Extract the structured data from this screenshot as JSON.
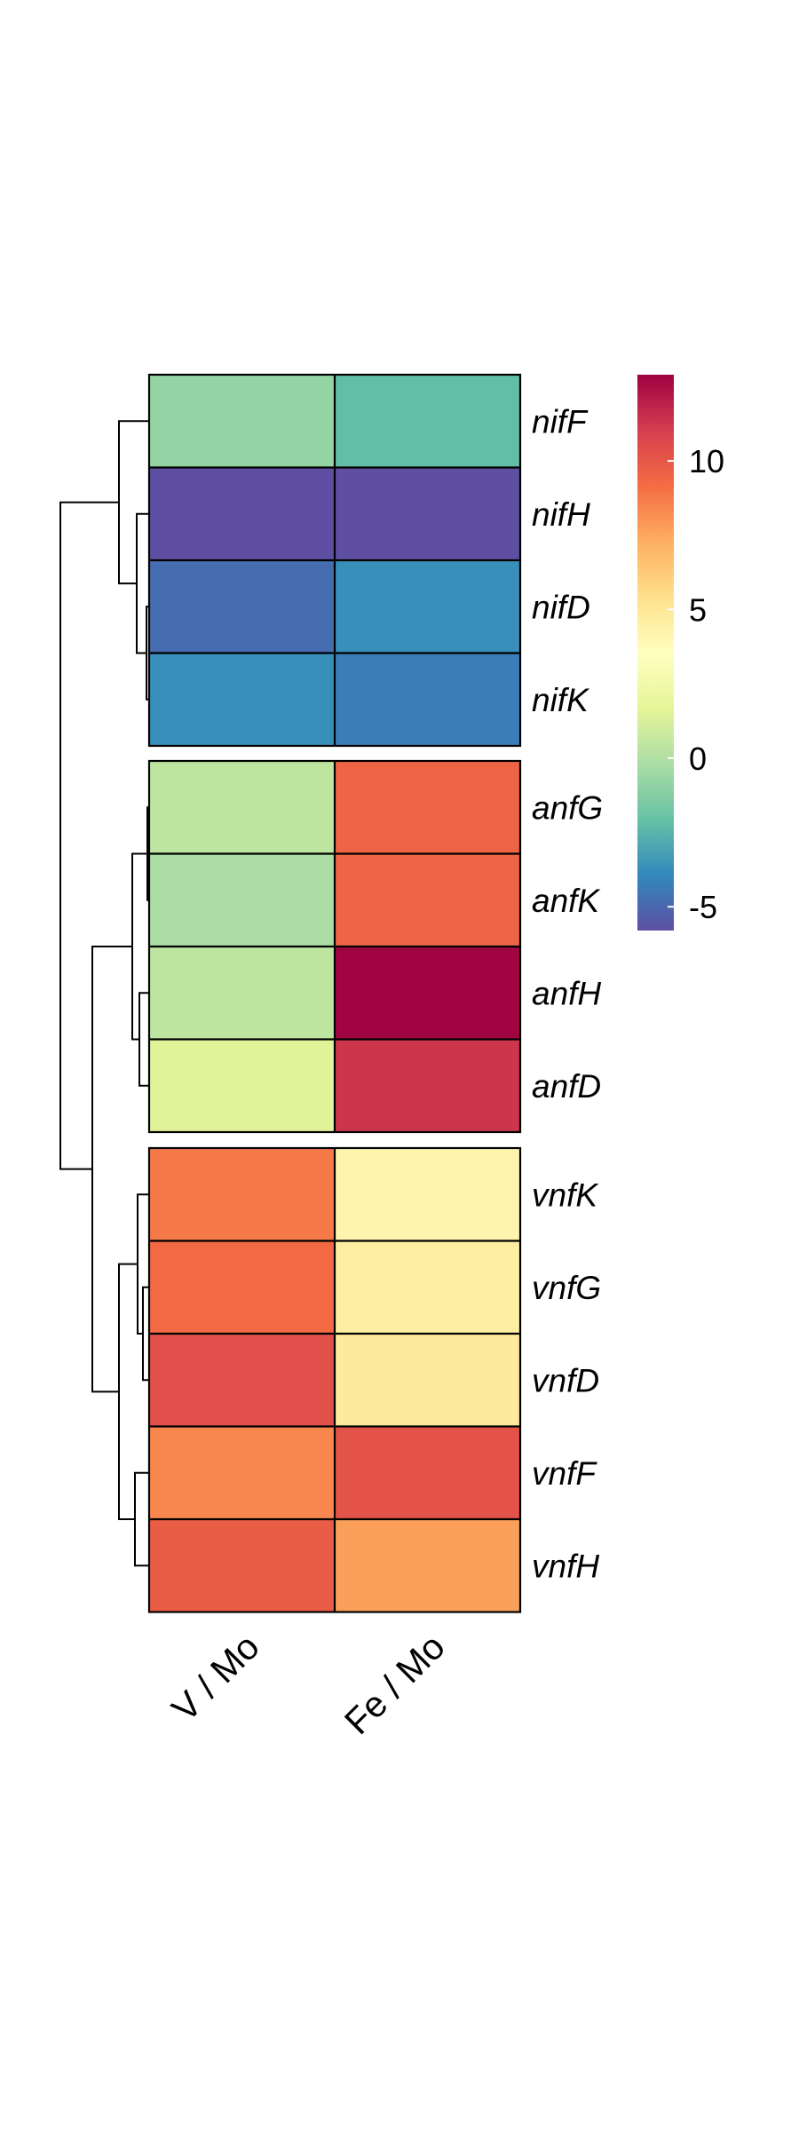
{
  "chart_data": {
    "type": "heatmap",
    "title": "",
    "columns": [
      "V / Mo",
      "Fe / Mo"
    ],
    "groups": [
      {
        "rows": [
          {
            "label": "nifF",
            "values": [
              -0.8,
              -2.2
            ]
          },
          {
            "label": "nifH",
            "values": [
              -5.8,
              -5.8
            ]
          },
          {
            "label": "nifD",
            "values": [
              -4.8,
              -3.7
            ]
          },
          {
            "label": "nifK",
            "values": [
              -3.7,
              -4.3
            ]
          }
        ]
      },
      {
        "rows": [
          {
            "label": "anfG",
            "values": [
              0.4,
              9.5
            ]
          },
          {
            "label": "anfK",
            "values": [
              -0.2,
              9.5
            ]
          },
          {
            "label": "anfH",
            "values": [
              0.4,
              12.8
            ]
          },
          {
            "label": "anfD",
            "values": [
              1.5,
              11.3
            ]
          }
        ]
      },
      {
        "rows": [
          {
            "label": "vnfK",
            "values": [
              8.8,
              4.2
            ]
          },
          {
            "label": "vnfG",
            "values": [
              9.3,
              4.6
            ]
          },
          {
            "label": "vnfD",
            "values": [
              10.3,
              4.8
            ]
          },
          {
            "label": "vnfF",
            "values": [
              8.4,
              10.2
            ]
          },
          {
            "label": "vnfH",
            "values": [
              9.8,
              7.7
            ]
          }
        ]
      }
    ],
    "legend": {
      "min": -5.8,
      "max": 12.9,
      "ticks": [
        "10",
        "5",
        "0",
        "-5"
      ],
      "tick_values": [
        10,
        5,
        0,
        -5
      ],
      "placement": "right",
      "colormap": "Spectral (reversed)",
      "stops": [
        "#5E4FA2",
        "#3288BD",
        "#66C2A5",
        "#ABDDA4",
        "#E6F598",
        "#FFFFBF",
        "#FEE08B",
        "#FDAE61",
        "#F46D43",
        "#D53E4F",
        "#9E0142"
      ]
    },
    "dendrogram": "left",
    "grid": false
  }
}
